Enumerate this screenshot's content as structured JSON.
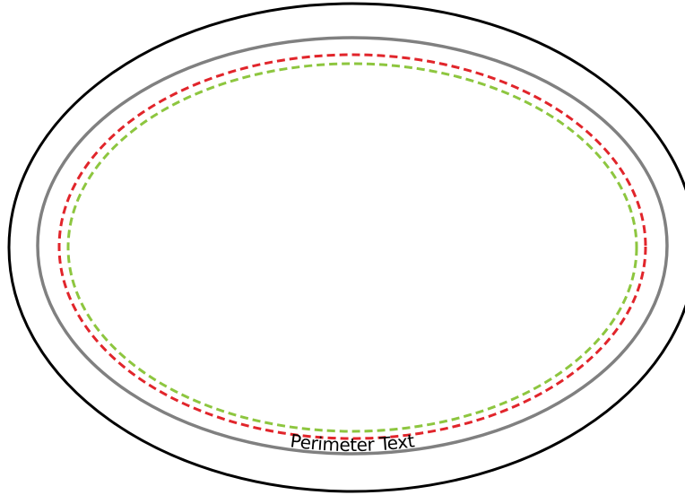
{
  "diagram": {
    "perimeter_label": "Perimeter Text",
    "colors": {
      "outer_boundary": "#000000",
      "perimeter_text_path": "#808080",
      "red_dashed_line": "#e1252b",
      "green_dashed_line": "#8dc63f",
      "background": "#ffffff"
    }
  }
}
